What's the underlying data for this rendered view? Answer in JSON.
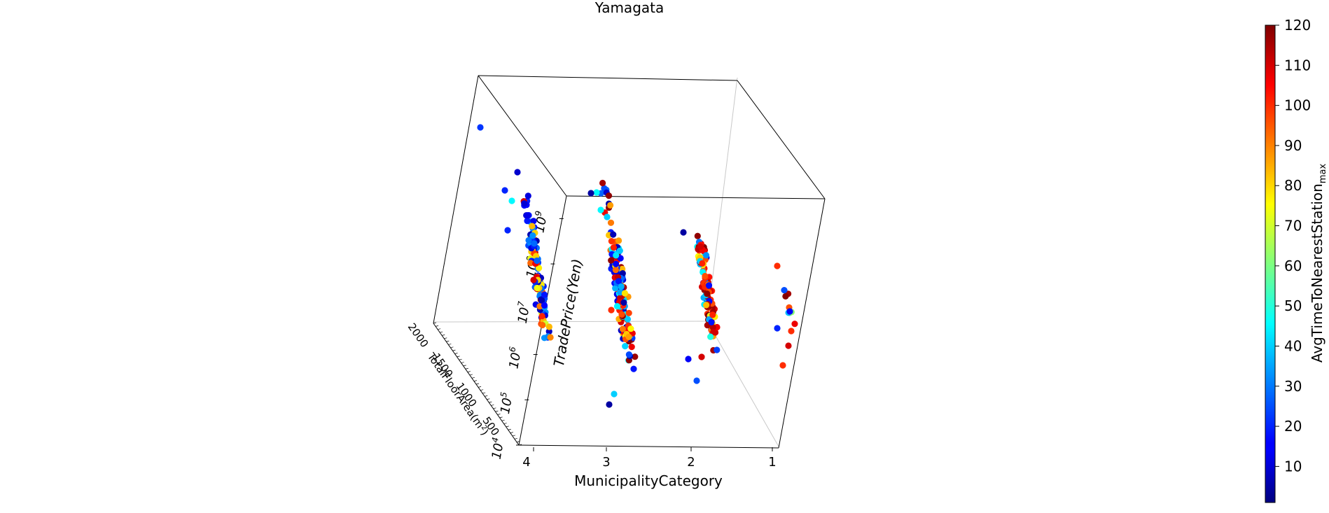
{
  "chart_data": {
    "type": "scatter",
    "title": "Yamagata",
    "xlabel": "MunicipalityCategory",
    "ylabel": "TotalFloorArea(m²)",
    "zlabel": "TradePrice(Yen)",
    "x_ticks": [
      "4",
      "3",
      "2",
      "1"
    ],
    "y_ticks": [
      "500",
      "1000",
      "1500",
      "2000"
    ],
    "z_ticks": [
      "10^4",
      "10^5",
      "10^6",
      "10^7",
      "10^8",
      "10^9"
    ],
    "z_scale": "log",
    "colorbar": {
      "label": "AvgTimeToNearestStation_max",
      "label_main": "AvgTimeToNearestStation",
      "label_sub": "max",
      "ticks": [
        "10",
        "20",
        "30",
        "40",
        "50",
        "60",
        "70",
        "80",
        "90",
        "100",
        "110",
        "120"
      ],
      "range": [
        1,
        120
      ],
      "colormap": "jet"
    },
    "clusters": [
      {
        "municipality_category": 4,
        "price_range_log10": [
          5.6,
          8.4
        ],
        "area_range": [
          0,
          2000
        ],
        "point_count": 130
      },
      {
        "municipality_category": 3,
        "price_range_log10": [
          5.0,
          8.9
        ],
        "area_range": [
          0,
          1500
        ],
        "point_count": 160
      },
      {
        "municipality_category": 2,
        "price_range_log10": [
          5.3,
          7.8
        ],
        "area_range": [
          0,
          800
        ],
        "point_count": 120
      },
      {
        "municipality_category": 1,
        "price_range_log10": [
          5.6,
          7.6
        ],
        "area_range": [
          0,
          300
        ],
        "point_count": 8
      }
    ]
  }
}
